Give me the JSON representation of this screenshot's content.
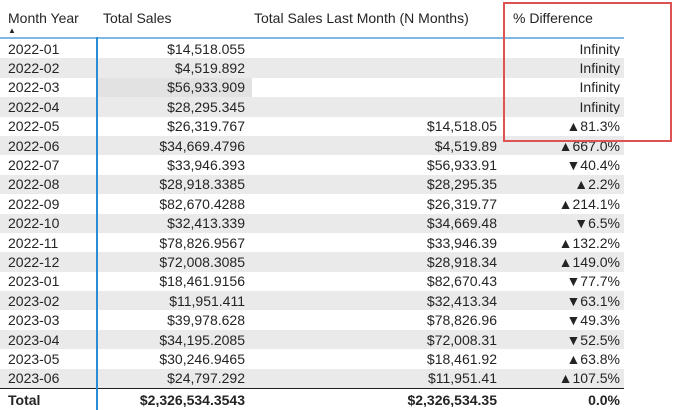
{
  "chart_data": {
    "type": "table",
    "title": "",
    "columns": [
      {
        "label": "Month Year",
        "align": "left"
      },
      {
        "label": "Total Sales",
        "align": "right"
      },
      {
        "label": "Total Sales Last Month (N Months)",
        "align": "right"
      },
      {
        "label": "% Difference",
        "align": "right"
      }
    ],
    "sort": {
      "column": "Month Year",
      "direction": "ascending"
    },
    "rows": [
      [
        "2022-01",
        "$14,518.055",
        "",
        "Infinity"
      ],
      [
        "2022-02",
        "$4,519.892",
        "",
        "Infinity"
      ],
      [
        "2022-03",
        "$56,933.909",
        "",
        "Infinity"
      ],
      [
        "2022-04",
        "$28,295.345",
        "",
        "Infinity"
      ],
      [
        "2022-05",
        "$26,319.767",
        "$14,518.05",
        "▲81.3%"
      ],
      [
        "2022-06",
        "$34,669.4796",
        "$4,519.89",
        "▲667.0%"
      ],
      [
        "2022-07",
        "$33,946.393",
        "$56,933.91",
        "▼40.4%"
      ],
      [
        "2022-08",
        "$28,918.3385",
        "$28,295.35",
        "▲2.2%"
      ],
      [
        "2022-09",
        "$82,670.4288",
        "$26,319.77",
        "▲214.1%"
      ],
      [
        "2022-10",
        "$32,413.339",
        "$34,669.48",
        "▼6.5%"
      ],
      [
        "2022-11",
        "$78,826.9567",
        "$33,946.39",
        "▲132.2%"
      ],
      [
        "2022-12",
        "$72,008.3085",
        "$28,918.34",
        "▲149.0%"
      ],
      [
        "2023-01",
        "$18,461.9156",
        "$82,670.43",
        "▼77.7%"
      ],
      [
        "2023-02",
        "$11,951.411",
        "$32,413.34",
        "▼63.1%"
      ],
      [
        "2023-03",
        "$39,978.628",
        "$78,826.96",
        "▼49.3%"
      ],
      [
        "2023-04",
        "$34,195.2085",
        "$72,008.31",
        "▼52.5%"
      ],
      [
        "2023-05",
        "$30,246.9465",
        "$18,461.92",
        "▲63.8%"
      ],
      [
        "2023-06",
        "$24,797.292",
        "$11,951.41",
        "▲107.5%"
      ]
    ],
    "total_row": [
      "Total",
      "$2,326,534.3543",
      "$2,326,534.35",
      "0.0%"
    ]
  },
  "ui": {
    "sort_icon": "▲",
    "highlighted_cell": {
      "row_label": "2022-03",
      "column": "Total Sales"
    },
    "annotation_box": {
      "shape": "rectangle",
      "highlights": "% Difference column header and first six values"
    },
    "colors": {
      "text": "#252423",
      "row_band": "#eaeaea",
      "highlight_cell_bg": "#e2e2e2",
      "header_underline": "#7eb8e4",
      "column_separator": "#2a8dd4",
      "total_border": "#1f1f1f",
      "annotation_red": "#dd5252"
    }
  }
}
